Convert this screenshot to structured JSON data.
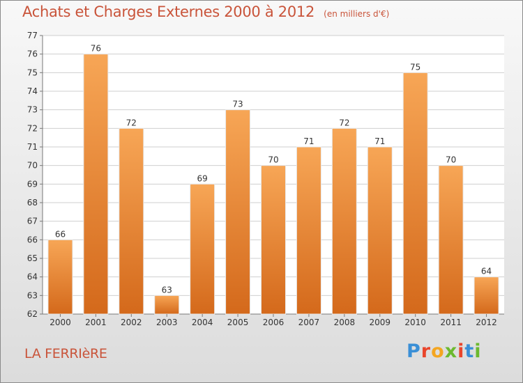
{
  "header": {
    "title": "Achats et Charges Externes 2000 à 2012",
    "unit": "(en milliers d'€)"
  },
  "commune": "LA FERRIèRE",
  "brand": {
    "text": "Proxiti",
    "letter_colors": [
      "#3a8fd6",
      "#e9452b",
      "#f4a621",
      "#6cb92f",
      "#e9452b",
      "#3a8fd6",
      "#6cb92f"
    ]
  },
  "colors": {
    "title": "#c9543a",
    "bar_top": "#f7a656",
    "bar_bottom": "#d4691b",
    "grid": "#cfcfcf",
    "text": "#333333"
  },
  "chart_data": {
    "type": "bar",
    "title": "Achats et Charges Externes 2000 à 2012",
    "subtitle": "(en milliers d'€)",
    "categories": [
      "2000",
      "2001",
      "2002",
      "2003",
      "2004",
      "2005",
      "2006",
      "2007",
      "2008",
      "2009",
      "2010",
      "2011",
      "2012"
    ],
    "values": [
      66,
      76,
      72,
      63,
      69,
      73,
      70,
      71,
      72,
      71,
      75,
      70,
      64
    ],
    "ylim": [
      62,
      77
    ],
    "yticks": [
      62,
      63,
      64,
      65,
      66,
      67,
      68,
      69,
      70,
      71,
      72,
      73,
      74,
      75,
      76,
      77
    ],
    "grid": true,
    "data_labels": true,
    "xlabel": "",
    "ylabel": ""
  }
}
